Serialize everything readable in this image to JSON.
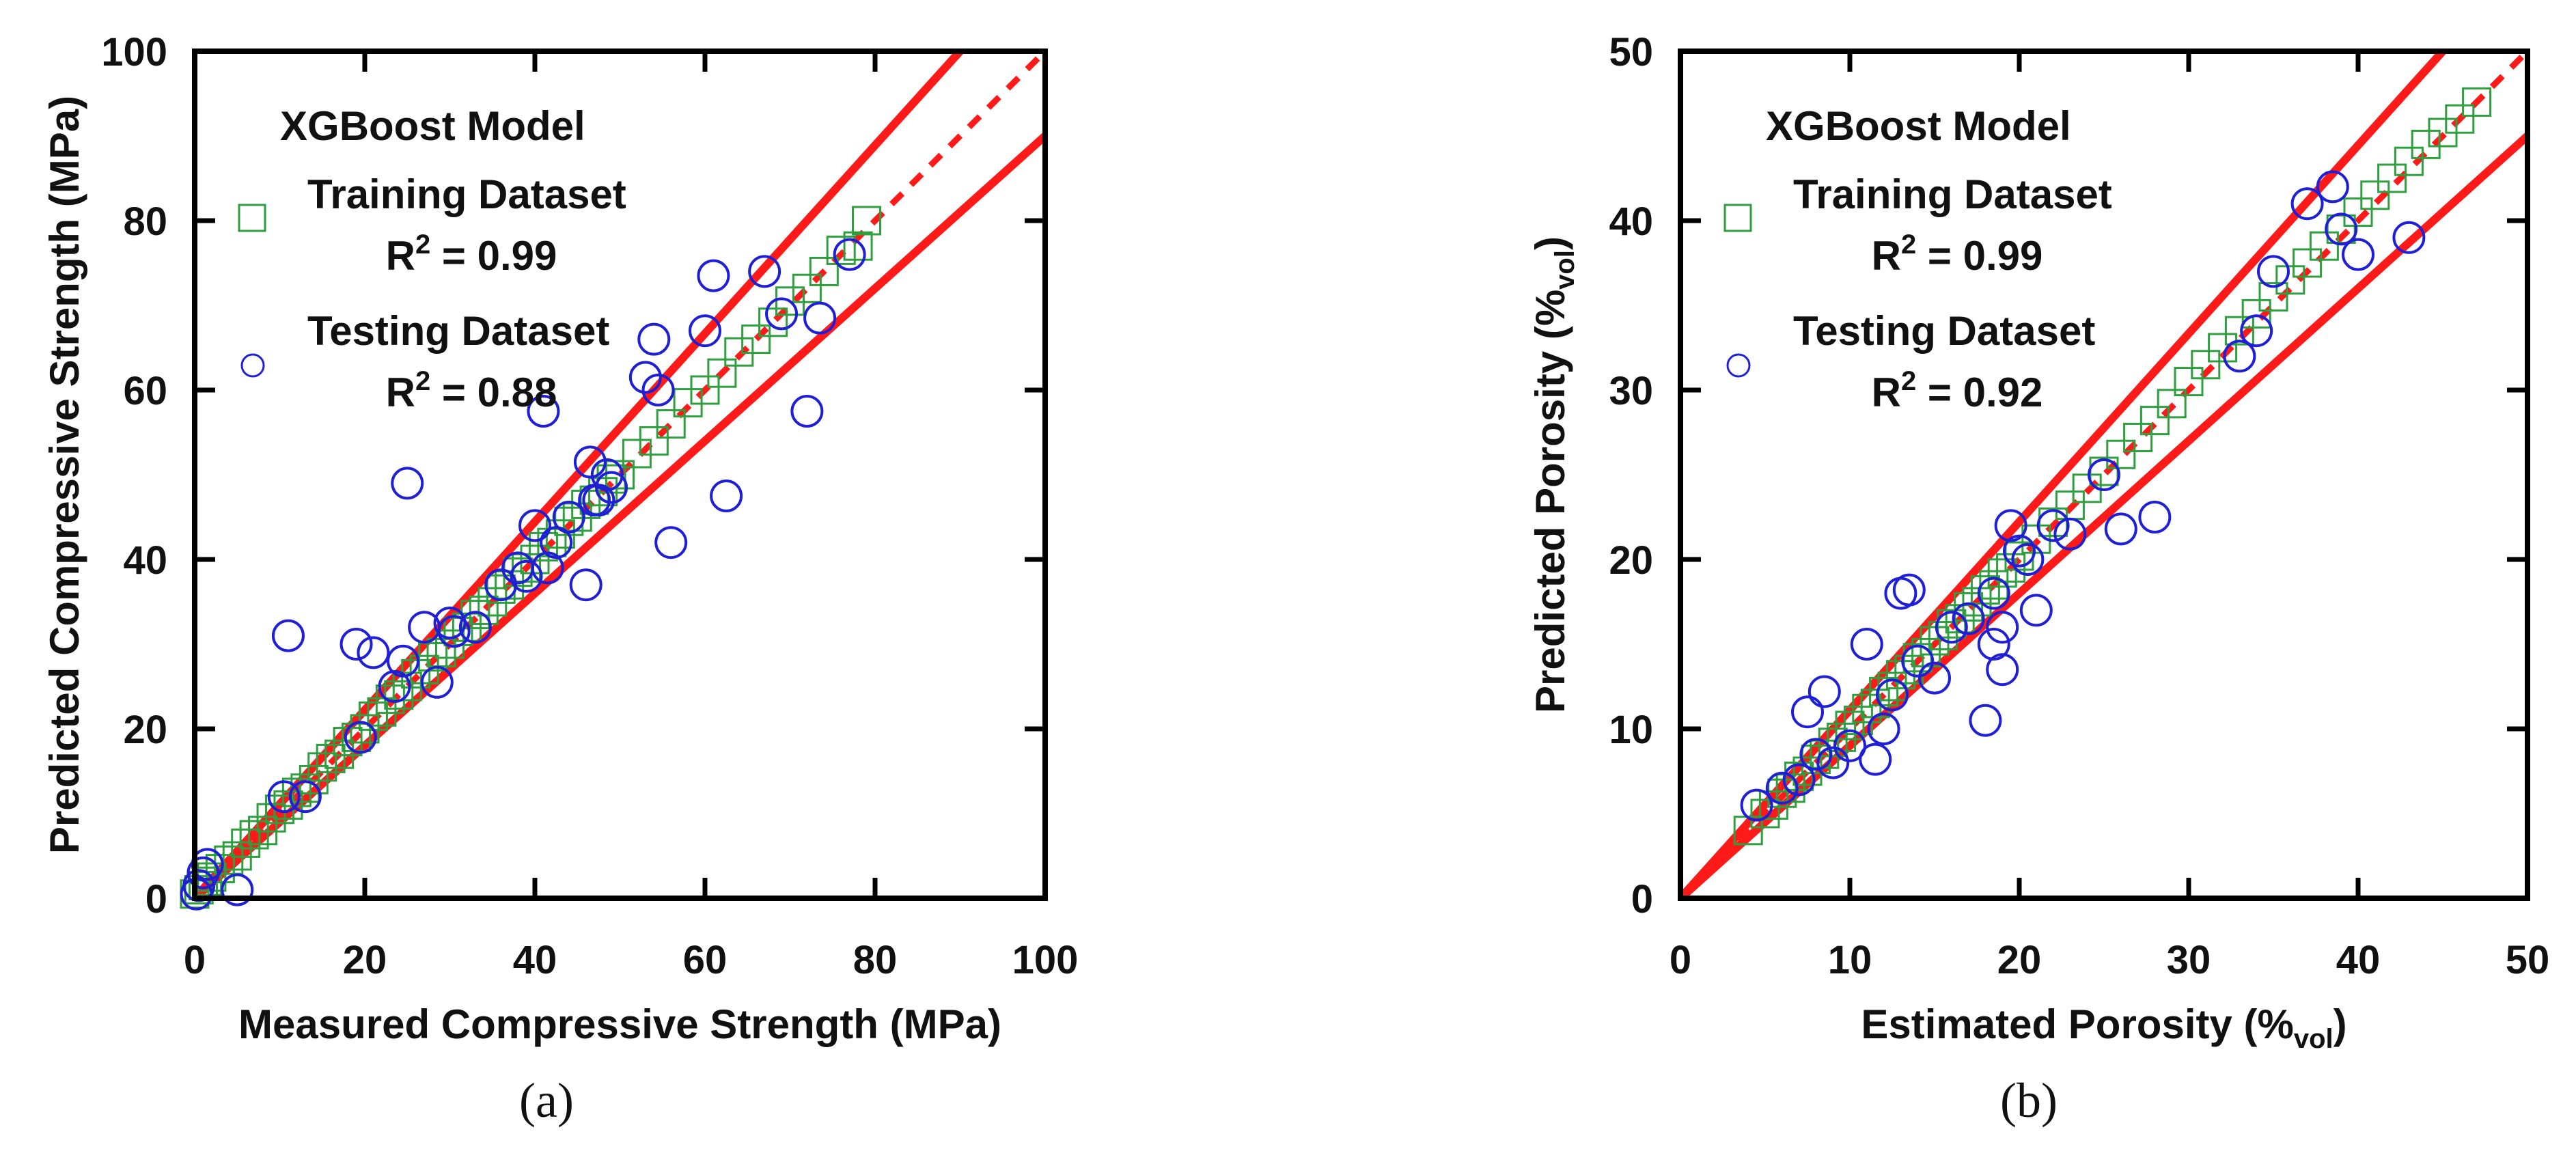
{
  "colors": {
    "training": "#2e9e3e",
    "testing": "#1f1fd6",
    "lines": "#ff1a1a",
    "axes": "#000000"
  },
  "chart_data": [
    {
      "type": "scatter",
      "panel_label": "(a)",
      "xlabel": "Measured Compressive Strength (MPa)",
      "ylabel": "Predicted Compressive Strength (MPa)",
      "xlim": [
        0,
        100
      ],
      "ylim": [
        0,
        100
      ],
      "xticks": [
        "0",
        "20",
        "40",
        "60",
        "80",
        "100"
      ],
      "yticks": [
        "0",
        "20",
        "40",
        "60",
        "80",
        "100"
      ],
      "legend": {
        "title": "XGBoost Model",
        "training_label": "Training Dataset",
        "training_r2_prefix": "R",
        "training_r2_sup": "2",
        "training_r2_value": " = 0.99",
        "testing_label": "Testing Dataset",
        "testing_r2_prefix": "R",
        "testing_r2_sup": "2",
        "testing_r2_value": " = 0.88"
      },
      "lines": [
        {
          "name": "1:1 line",
          "style": "dashed",
          "from": [
            0,
            0
          ],
          "to": [
            100,
            100
          ]
        },
        {
          "name": "+10% bound",
          "style": "solid",
          "from": [
            0,
            0
          ],
          "to": [
            90,
            100
          ]
        },
        {
          "name": "-10% bound",
          "style": "solid",
          "from": [
            0,
            0
          ],
          "to": [
            100,
            90
          ]
        }
      ],
      "series": [
        {
          "name": "Training Dataset",
          "marker": "square",
          "x": [
            0,
            0.5,
            1,
            1.5,
            2,
            3,
            4,
            5,
            6,
            7,
            8,
            9,
            10,
            11,
            12,
            13,
            14,
            15,
            16,
            17,
            18,
            19,
            20,
            21,
            22,
            23,
            24,
            25,
            26,
            27,
            28,
            29,
            30,
            31,
            32,
            33,
            34,
            35,
            36,
            37,
            38,
            39,
            40,
            41,
            42,
            43,
            44,
            45,
            46,
            47,
            48,
            49,
            50,
            52,
            54,
            56,
            58,
            60,
            62,
            64,
            66,
            68,
            70,
            72,
            74,
            76,
            78,
            79
          ],
          "y": [
            0.5,
            1,
            1.5,
            2,
            2.5,
            3.5,
            4.5,
            5,
            6.5,
            7.5,
            8,
            9.5,
            10.5,
            11,
            12.5,
            13,
            14,
            15.5,
            16.5,
            17,
            18.5,
            19,
            20,
            21.5,
            22,
            23.5,
            24,
            25,
            26.5,
            27,
            28.5,
            29,
            30,
            31.5,
            32,
            33.5,
            34,
            35,
            36.5,
            37,
            38.5,
            39,
            40,
            41.5,
            42,
            43,
            44.5,
            45,
            46.5,
            47,
            48,
            49.5,
            50,
            52.5,
            54,
            56,
            58.5,
            60,
            62,
            64.5,
            66,
            68,
            70.5,
            72,
            74,
            76.5,
            77,
            80
          ]
        },
        {
          "name": "Testing Dataset",
          "marker": "circle",
          "x": [
            0.2,
            0.5,
            1,
            1.5,
            5,
            11,
            13,
            19,
            19.5,
            21,
            23.5,
            24.5,
            25,
            27,
            28.5,
            30,
            30.5,
            33,
            38,
            39,
            40,
            41,
            41.5,
            42.5,
            46,
            46.5,
            47.5,
            48.5,
            49,
            53,
            54,
            54.5,
            56,
            60,
            61,
            62.5,
            67,
            69,
            72,
            73.5,
            77,
            10.5,
            47,
            44,
            36
          ],
          "y": [
            0.5,
            1.5,
            3,
            4,
            1,
            31,
            12,
            30,
            19,
            29,
            25,
            28,
            49,
            32,
            25.5,
            32.5,
            31.5,
            32,
            39,
            38,
            44,
            57.5,
            39,
            42,
            37,
            51.5,
            47,
            50,
            48.5,
            61.5,
            66,
            60,
            42,
            67,
            73.5,
            47.5,
            74,
            69,
            57.5,
            68.5,
            76,
            12,
            47,
            45,
            37
          ]
        }
      ]
    },
    {
      "type": "scatter",
      "panel_label": "(b)",
      "xlabel_main": "Estimated Porosity (%",
      "xlabel_sub": "vol",
      "xlabel_end": ")",
      "ylabel_main": "Predicted Porosity (%",
      "ylabel_sub": "vol",
      "ylabel_end": ")",
      "xlim": [
        0,
        50
      ],
      "ylim": [
        0,
        50
      ],
      "xticks": [
        "0",
        "10",
        "20",
        "30",
        "40",
        "50"
      ],
      "yticks": [
        "0",
        "10",
        "20",
        "30",
        "40",
        "50"
      ],
      "legend": {
        "title": "XGBoost Model",
        "training_label": "Training Dataset",
        "training_r2_prefix": "R",
        "training_r2_sup": "2",
        "training_r2_value": " = 0.99",
        "testing_label": "Testing Dataset",
        "testing_r2_prefix": "R",
        "testing_r2_sup": "2",
        "testing_r2_value": " = 0.92"
      },
      "lines": [
        {
          "name": "1:1 line",
          "style": "dashed",
          "from": [
            0,
            0
          ],
          "to": [
            50,
            50
          ]
        },
        {
          "name": "+10% bound",
          "style": "solid",
          "from": [
            0,
            0
          ],
          "to": [
            45,
            50
          ]
        },
        {
          "name": "-10% bound",
          "style": "solid",
          "from": [
            0,
            0
          ],
          "to": [
            50,
            45
          ]
        }
      ],
      "series": [
        {
          "name": "Training Dataset",
          "marker": "square",
          "x": [
            4,
            5,
            5.5,
            6,
            6.5,
            7,
            7.5,
            8,
            8.5,
            9,
            9.5,
            10,
            10.5,
            11,
            11.5,
            12,
            12.5,
            13,
            13.5,
            14,
            14.5,
            15,
            15.5,
            16,
            16.5,
            17,
            17.5,
            18,
            18.5,
            19,
            19.5,
            20,
            21,
            22,
            23,
            24,
            25,
            26,
            27,
            28,
            29,
            30,
            31,
            32,
            33,
            34,
            35,
            36,
            37,
            38,
            39,
            40,
            41,
            42,
            43,
            44,
            45,
            46,
            47
          ],
          "y": [
            4,
            5,
            5.5,
            6.2,
            6.5,
            7.2,
            7.5,
            8.2,
            8.5,
            9.2,
            9.5,
            10.2,
            10.5,
            11.2,
            11.5,
            12.2,
            12.5,
            13.2,
            13.5,
            14.2,
            14.5,
            15.2,
            15.5,
            16.2,
            16.5,
            17.2,
            17.5,
            18.2,
            18.5,
            19.2,
            19.5,
            20.2,
            21.2,
            22.2,
            23.2,
            24.2,
            25.2,
            26.2,
            27.2,
            28.2,
            29.2,
            30.5,
            31.5,
            32.5,
            33.5,
            34.5,
            35.5,
            36.5,
            37.5,
            38.5,
            39.5,
            40.5,
            41.5,
            42.5,
            43.5,
            44.5,
            45.2,
            46,
            47
          ]
        },
        {
          "name": "Testing Dataset",
          "marker": "circle",
          "x": [
            4.5,
            6,
            7,
            7.5,
            8,
            8.5,
            9,
            10,
            11,
            11.5,
            12,
            12.5,
            13,
            13.5,
            14,
            15,
            16,
            17,
            18,
            18.5,
            19,
            19.5,
            20,
            21,
            22,
            23,
            25,
            26,
            28,
            33,
            34,
            35,
            37,
            38.5,
            39,
            40,
            43,
            18.5,
            19,
            20.5
          ],
          "y": [
            5.5,
            6.5,
            7,
            11,
            8.5,
            12.2,
            8,
            9,
            15,
            8.2,
            10,
            12,
            18,
            18.2,
            14,
            13,
            16,
            16.5,
            10.5,
            18,
            13.5,
            22,
            20.5,
            17,
            22,
            21.5,
            25,
            21.8,
            22.5,
            32,
            33.5,
            37,
            41,
            42,
            39.5,
            38,
            39,
            15,
            16,
            20
          ]
        }
      ]
    }
  ]
}
